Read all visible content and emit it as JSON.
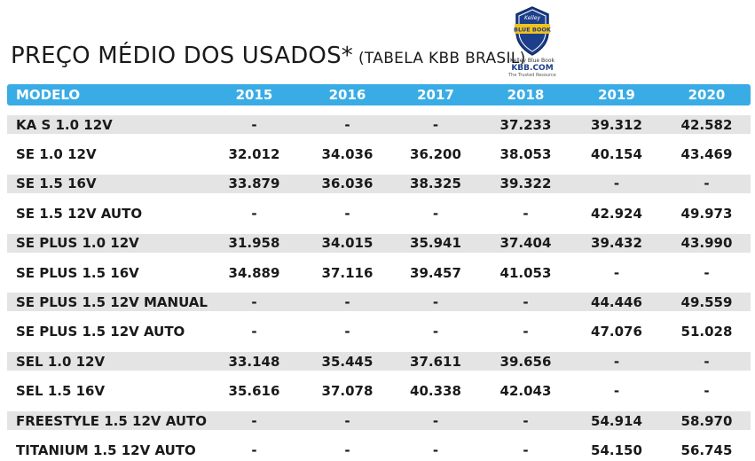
{
  "title": {
    "main": "PREÇO MÉDIO DOS USADOS*",
    "sub": "(TABELA KBB BRASIL)"
  },
  "logo": {
    "badge_top": "Kelley",
    "badge_mid": "BLUE BOOK",
    "brand_line": "Kelley Blue Book",
    "site": "KBB.COM",
    "tagline": "The Trusted Resource",
    "colors": {
      "badge": "#1d3f8a",
      "ribbon": "#f2c21a"
    }
  },
  "colors": {
    "header": "#3aace5",
    "band": "#e4e4e4"
  },
  "table": {
    "headers": [
      "MODELO",
      "2015",
      "2016",
      "2017",
      "2018",
      "2019",
      "2020"
    ],
    "rows": [
      [
        "KA S 1.0 12V",
        "-",
        "-",
        "-",
        "37.233",
        "39.312",
        "42.582"
      ],
      [
        "SE 1.0 12V",
        "32.012",
        "34.036",
        "36.200",
        "38.053",
        "40.154",
        "43.469"
      ],
      [
        "SE 1.5 16V",
        "33.879",
        "36.036",
        "38.325",
        "39.322",
        "-",
        "-"
      ],
      [
        "SE 1.5 12V AUTO",
        "-",
        "-",
        "-",
        "-",
        "42.924",
        "49.973"
      ],
      [
        "SE PLUS 1.0 12V",
        "31.958",
        "34.015",
        "35.941",
        "37.404",
        "39.432",
        "43.990"
      ],
      [
        "SE PLUS 1.5 16V",
        "34.889",
        "37.116",
        "39.457",
        "41.053",
        "-",
        "-"
      ],
      [
        "SE PLUS 1.5 12V MANUAL",
        "-",
        "-",
        "-",
        "-",
        "44.446",
        "49.559"
      ],
      [
        "SE PLUS 1.5 12V AUTO",
        "-",
        "-",
        "-",
        "-",
        "47.076",
        "51.028"
      ],
      [
        "SEL 1.0 12V",
        "33.148",
        "35.445",
        "37.611",
        "39.656",
        "-",
        "-"
      ],
      [
        "SEL 1.5 16V",
        "35.616",
        "37.078",
        "40.338",
        "42.043",
        "-",
        "-"
      ],
      [
        "FREESTYLE 1.5 12V AUTO",
        "-",
        "-",
        "-",
        "-",
        "54.914",
        "58.970"
      ],
      [
        "TITANIUM 1.5 12V AUTO",
        "-",
        "-",
        "-",
        "-",
        "54.150",
        "56.745"
      ]
    ]
  }
}
